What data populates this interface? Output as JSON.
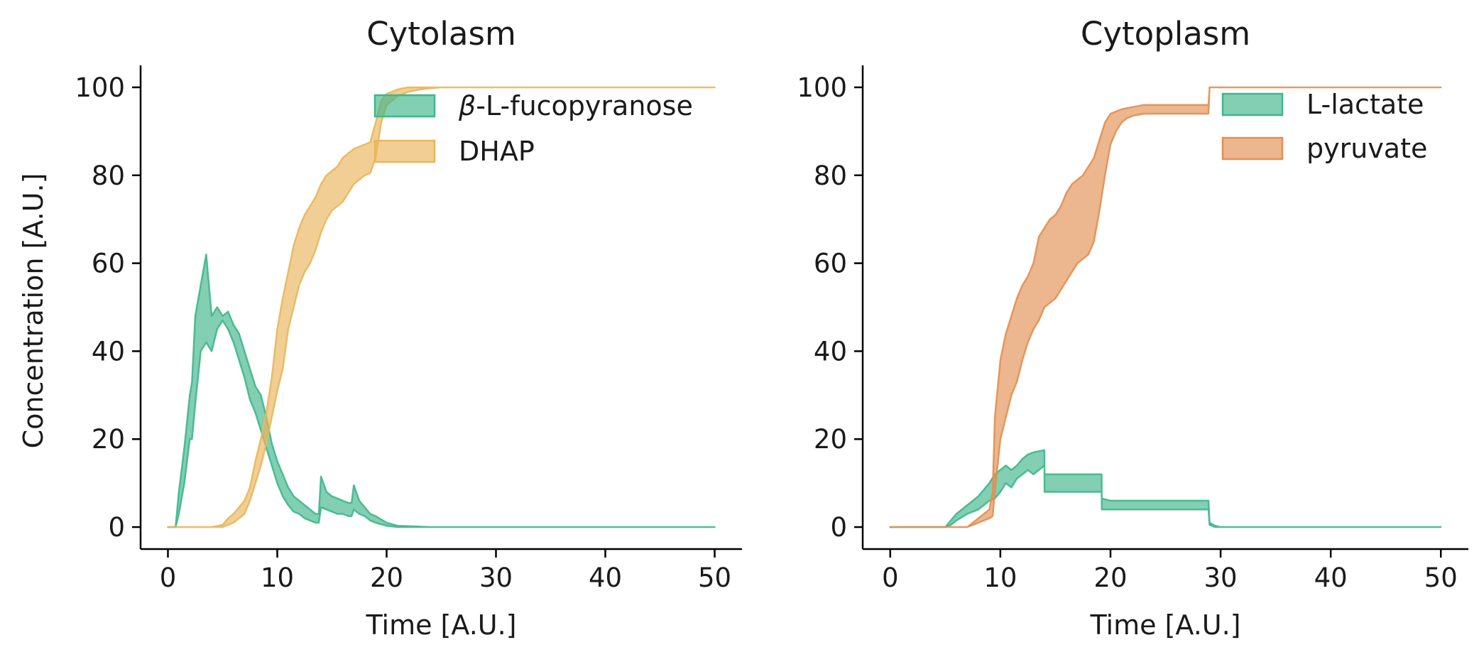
{
  "chart_data": [
    {
      "type": "area",
      "title": "Cytolasm",
      "xlabel": "Time [A.U.]",
      "ylabel": "Concentration [A.U.]",
      "xlim": [
        -2.5,
        52.5
      ],
      "ylim": [
        -5,
        105
      ],
      "xticks": [
        0,
        10,
        20,
        30,
        40,
        50
      ],
      "yticks": [
        0,
        20,
        40,
        60,
        80,
        100
      ],
      "grid": false,
      "legend_position": "top-right",
      "series": [
        {
          "name": "β-L-fucopyranose",
          "color": "#3fb68c",
          "x": [
            0,
            0.7,
            1,
            1.5,
            2,
            2.2,
            2.5,
            3,
            3.5,
            4,
            4.5,
            5,
            5.5,
            6,
            6.5,
            7,
            7.5,
            8,
            8.5,
            9,
            9.5,
            10,
            10.5,
            11,
            11.5,
            12,
            12.5,
            13,
            13.5,
            13.8,
            14,
            14.5,
            15,
            15.5,
            16,
            16.5,
            16.8,
            17,
            17.5,
            18,
            18.5,
            19,
            20,
            21,
            22,
            23,
            24,
            30,
            40,
            50
          ],
          "lower": [
            0,
            0,
            3,
            10,
            20,
            20,
            28,
            40,
            42,
            40,
            45,
            47,
            45,
            42,
            38,
            34,
            29,
            26,
            22,
            18,
            14,
            10,
            7,
            5,
            3.5,
            3,
            2,
            1.5,
            1,
            1,
            4.5,
            4,
            3.5,
            3,
            3,
            2.5,
            2.5,
            4,
            3,
            2.5,
            1.5,
            1,
            0.3,
            0,
            0,
            0,
            0,
            0,
            0,
            0
          ],
          "upper": [
            0,
            0,
            8,
            18,
            30,
            33,
            48,
            55,
            62,
            48,
            50,
            48,
            49,
            46,
            44,
            40,
            36,
            32,
            30,
            25,
            19,
            15,
            12,
            9,
            7,
            6,
            5,
            4,
            3,
            3,
            11.5,
            8,
            7,
            6.5,
            6,
            5.5,
            5.5,
            9.5,
            6,
            4.5,
            3,
            2.5,
            1,
            0.3,
            0.2,
            0.1,
            0,
            0,
            0,
            0
          ]
        },
        {
          "name": "DHAP",
          "color": "#e9b65a",
          "x": [
            0,
            4,
            5,
            5.5,
            6,
            7,
            7.5,
            8,
            8.5,
            9,
            9.5,
            10,
            10.5,
            11,
            11.5,
            12,
            12.5,
            13,
            13.5,
            14,
            14.5,
            15,
            15.5,
            16,
            16.5,
            17,
            17.5,
            18,
            18.5,
            19,
            19.5,
            20,
            20.5,
            21,
            21.5,
            22,
            23,
            24,
            25,
            30,
            40,
            50
          ],
          "lower": [
            0,
            0,
            0,
            0.5,
            1,
            3,
            6,
            10,
            14,
            19,
            25,
            31,
            36,
            45,
            50,
            55,
            58,
            60,
            63,
            67,
            70,
            72,
            73,
            74,
            76,
            78,
            79,
            80,
            80.5,
            84,
            92,
            96,
            97,
            98,
            98.5,
            99,
            99.5,
            99.8,
            100,
            100,
            100,
            100
          ],
          "upper": [
            0,
            0,
            0.5,
            2,
            3,
            6,
            9,
            15,
            20,
            26,
            34,
            45,
            52,
            58,
            64,
            68,
            71,
            73,
            75,
            78,
            80,
            81,
            82,
            84,
            85,
            86,
            86.5,
            87,
            87.5,
            92,
            97,
            98.5,
            99,
            99.5,
            99.8,
            100,
            100,
            100,
            100,
            100,
            100,
            100
          ]
        }
      ]
    },
    {
      "type": "area",
      "title": "Cytoplasm",
      "xlabel": "Time [A.U.]",
      "ylabel": "",
      "xlim": [
        -2.5,
        52.5
      ],
      "ylim": [
        -5,
        105
      ],
      "xticks": [
        0,
        10,
        20,
        30,
        40,
        50
      ],
      "yticks": [
        0,
        20,
        40,
        60,
        80,
        100
      ],
      "grid": false,
      "legend_position": "top-right",
      "series": [
        {
          "name": "L-lactate",
          "color": "#3fb68c",
          "x": [
            0,
            5,
            5.5,
            6,
            7,
            8,
            9,
            9.5,
            10,
            10.5,
            11,
            11.5,
            12,
            12.5,
            13,
            14,
            14.01,
            15,
            16,
            17,
            18,
            19,
            19.2,
            19.21,
            20,
            25,
            28.9,
            29,
            29.5,
            30,
            40,
            50
          ],
          "lower": [
            0,
            0,
            0.5,
            1.5,
            3,
            4,
            6,
            6.5,
            8,
            10,
            9,
            11,
            12,
            13,
            12,
            14,
            8,
            8,
            8,
            8,
            8,
            8,
            8,
            4,
            4,
            4,
            4,
            0.5,
            0,
            0,
            0,
            0
          ],
          "upper": [
            0,
            0,
            1.5,
            3,
            5,
            7,
            10,
            12,
            13,
            14,
            13,
            14,
            15.5,
            16.5,
            17,
            17.5,
            12,
            12,
            12,
            12,
            12,
            12,
            12,
            6.5,
            6,
            6,
            6,
            1,
            0.3,
            0,
            0,
            0
          ],
          "x_sep": true
        },
        {
          "name": "pyruvate",
          "color": "#e28f52",
          "x": [
            0,
            7,
            7.5,
            8,
            9,
            9.3,
            9.5,
            10,
            10.5,
            11,
            11.5,
            12,
            12.5,
            13,
            13.5,
            14,
            14.5,
            15,
            15.5,
            16,
            16.5,
            17,
            17.5,
            18,
            18.5,
            19,
            19.5,
            20,
            20.5,
            21,
            21.5,
            22,
            23,
            28.9,
            29,
            30,
            40,
            50
          ],
          "lower": [
            0,
            0,
            0.5,
            1,
            2,
            2.5,
            8,
            20,
            25,
            30,
            33,
            38,
            42,
            45,
            47,
            50,
            51,
            52,
            54,
            56,
            58,
            60,
            61,
            62,
            65,
            72,
            80,
            87,
            90,
            92,
            93,
            93.5,
            94,
            94,
            100,
            100,
            100,
            100
          ],
          "upper": [
            0,
            0,
            1,
            2,
            4,
            8,
            25,
            38,
            44,
            48,
            52,
            55,
            57,
            60,
            66,
            68,
            70,
            71,
            73,
            76,
            78,
            79,
            80,
            82,
            84,
            88,
            92,
            94,
            94.5,
            95,
            95.3,
            95.5,
            96,
            96,
            100,
            100,
            100,
            100
          ]
        }
      ]
    }
  ]
}
